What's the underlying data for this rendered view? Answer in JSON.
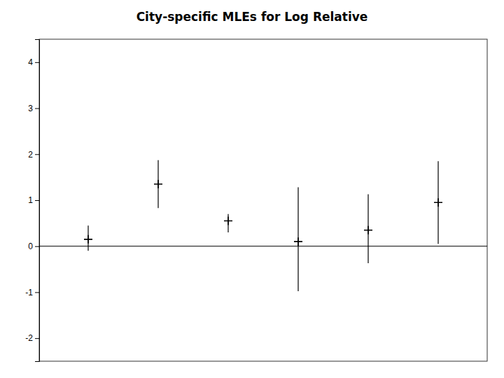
{
  "chart_data": {
    "type": "errorbar",
    "title": "City-specific MLEs for Log Relative",
    "x": [
      1,
      2,
      3,
      4,
      5,
      6
    ],
    "values": [
      0.15,
      1.35,
      0.55,
      0.1,
      0.35,
      0.95
    ],
    "lower": [
      -0.1,
      0.83,
      0.3,
      -0.98,
      -0.37,
      0.05
    ],
    "upper": [
      0.45,
      1.87,
      0.7,
      1.28,
      1.13,
      1.85
    ],
    "hline": 0,
    "xlim": [
      0.3,
      6.7
    ],
    "ylim": [
      -2.5,
      4.5
    ],
    "yticks": [
      -2,
      -1,
      0,
      1,
      2,
      3,
      4
    ],
    "color": "#000000",
    "marker": "plus",
    "tick_labels": "y",
    "grid": false
  }
}
